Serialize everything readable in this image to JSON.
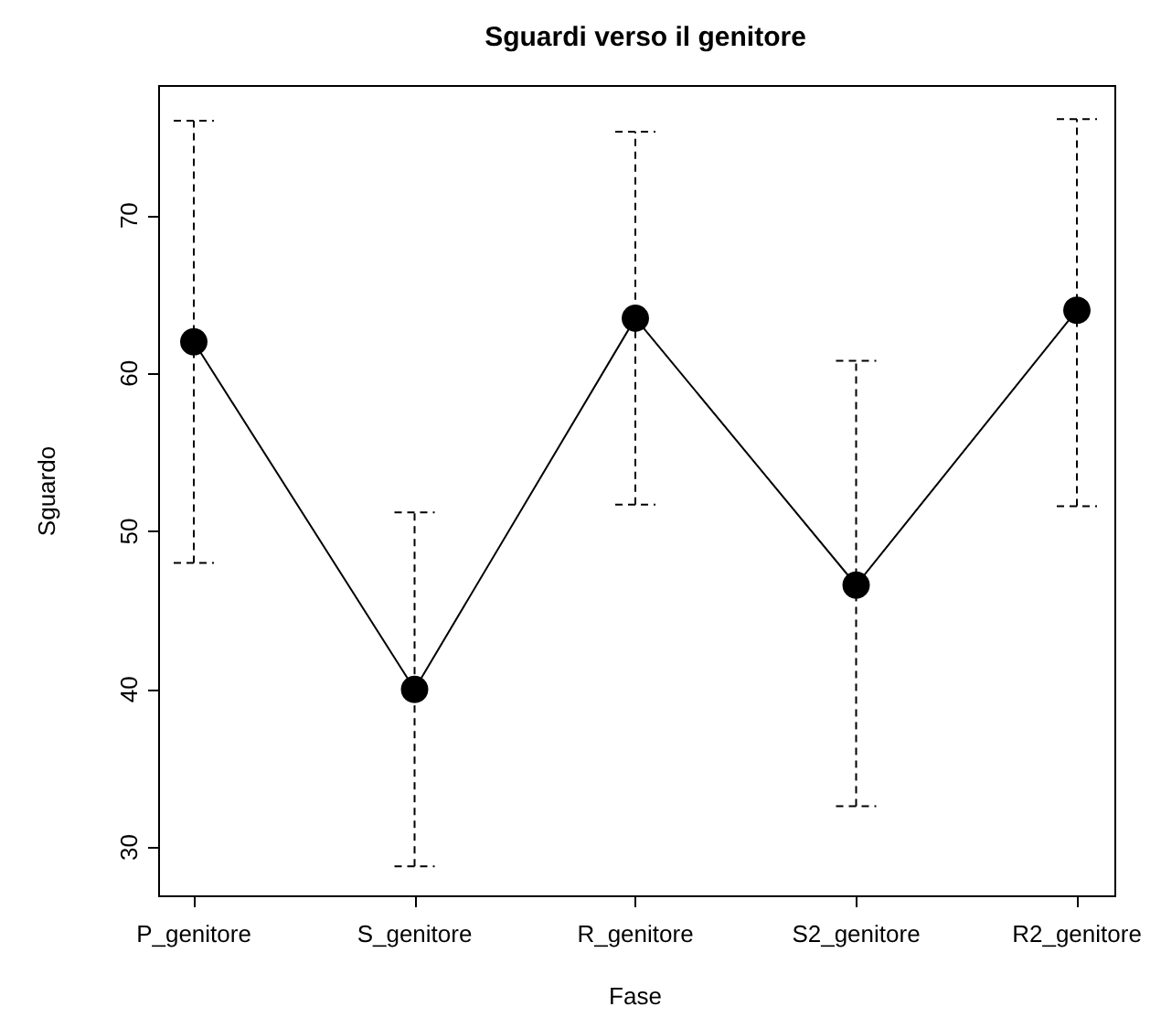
{
  "chart_data": {
    "type": "line",
    "title": "Sguardi verso il genitore",
    "xlabel": "Fase",
    "ylabel": "Sguardo",
    "categories": [
      "P_genitore",
      "S_genitore",
      "R_genitore",
      "S2_genitore",
      "R2_genitore"
    ],
    "series": [
      {
        "color": "#000000",
        "values": [
          62.0,
          40.0,
          63.5,
          46.6,
          64.0
        ],
        "errors": [
          [
            48.0,
            76.0
          ],
          [
            28.8,
            51.2
          ],
          [
            51.7,
            75.3
          ],
          [
            32.6,
            60.8
          ],
          [
            51.6,
            76.1
          ]
        ]
      }
    ],
    "ylim": [
      26.9,
      78.2
    ],
    "yticks": [
      30,
      40,
      50,
      60,
      70
    ],
    "marker": "circle",
    "line_style": "solid"
  }
}
